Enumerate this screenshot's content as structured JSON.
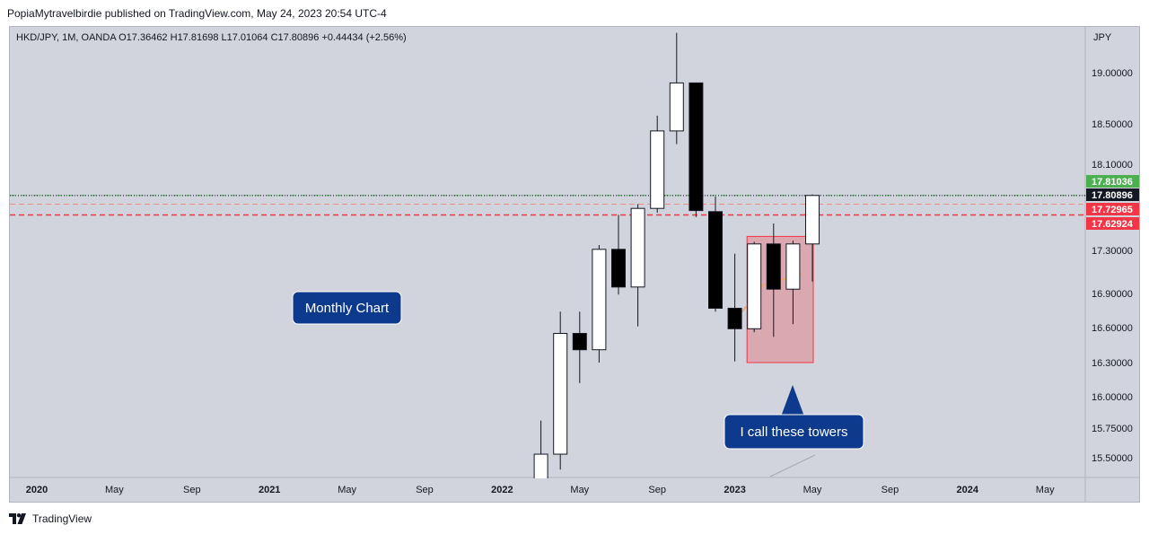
{
  "header": {
    "author": "PopiaMytravelbirdie",
    "published_text": "published on TradingView.com, May 24, 2023 20:54 UTC-4"
  },
  "chart_data": {
    "type": "candlestick",
    "symbol_line": {
      "symbol": "HKD/JPY, 1M, OANDA",
      "open": "O17.36462",
      "high": "H17.81698",
      "low": "L17.01064",
      "close": "C17.80896",
      "change": "+0.44434 (+2.56%)"
    },
    "currency_label": "JPY",
    "x_labels": [
      "2020",
      "May",
      "Sep",
      "2021",
      "May",
      "Sep",
      "2022",
      "May",
      "Sep",
      "2023",
      "May",
      "Sep",
      "2024",
      "May"
    ],
    "y_ticks": [
      15.5,
      15.75,
      16.0,
      16.3,
      16.6,
      16.9,
      17.3,
      18.1,
      18.5,
      19.0
    ],
    "y_tick_labels": [
      "15.50000",
      "15.75000",
      "16.00000",
      "16.30000",
      "16.60000",
      "16.90000",
      "17.30000",
      "18.10000",
      "18.50000",
      "19.00000"
    ],
    "candles": [
      {
        "date": "2022-03",
        "open": 15.3,
        "high": 15.81,
        "low": 15.2,
        "close": 15.53
      },
      {
        "date": "2022-04",
        "open": 15.53,
        "high": 16.74,
        "low": 15.4,
        "close": 16.55
      },
      {
        "date": "2022-05",
        "open": 16.55,
        "high": 16.74,
        "low": 16.12,
        "close": 16.41
      },
      {
        "date": "2022-06",
        "open": 16.41,
        "high": 17.35,
        "low": 16.3,
        "close": 17.31
      },
      {
        "date": "2022-07",
        "open": 17.31,
        "high": 17.63,
        "low": 16.89,
        "close": 16.96
      },
      {
        "date": "2022-08",
        "open": 16.96,
        "high": 17.73,
        "low": 16.61,
        "close": 17.69
      },
      {
        "date": "2022-09",
        "open": 17.69,
        "high": 18.58,
        "low": 17.65,
        "close": 18.43
      },
      {
        "date": "2022-10",
        "open": 18.43,
        "high": 19.39,
        "low": 18.3,
        "close": 18.9
      },
      {
        "date": "2022-11",
        "open": 18.9,
        "high": 18.9,
        "low": 17.61,
        "close": 17.67
      },
      {
        "date": "2022-12",
        "open": 17.66,
        "high": 17.8,
        "low": 16.74,
        "close": 16.77
      },
      {
        "date": "2023-01",
        "open": 16.77,
        "high": 17.27,
        "low": 16.31,
        "close": 16.59
      },
      {
        "date": "2023-02",
        "open": 16.59,
        "high": 17.38,
        "low": 16.56,
        "close": 17.36
      },
      {
        "date": "2023-03",
        "open": 17.36,
        "high": 17.55,
        "low": 16.52,
        "close": 16.94
      },
      {
        "date": "2023-04",
        "open": 16.94,
        "high": 17.39,
        "low": 16.63,
        "close": 17.36
      },
      {
        "date": "2023-05",
        "open": 17.36,
        "high": 17.82,
        "low": 17.01,
        "close": 17.81
      }
    ],
    "horizontal_lines": [
      {
        "label": "17.81036",
        "value": 17.81036,
        "color": "#4caf50",
        "style": "dash-dot"
      },
      {
        "label": "17.80896",
        "value": 17.80896,
        "color": "#131722",
        "style": "dotted"
      },
      {
        "label": "17.72965",
        "value": 17.72965,
        "color": "#f28b82",
        "style": "dashed"
      },
      {
        "label": "17.62924",
        "value": 17.62924,
        "color": "#f23645",
        "style": "dashed"
      }
    ],
    "annotations": [
      {
        "text": "Monthly Chart"
      },
      {
        "text": "I call these towers"
      }
    ],
    "highlight_box": {
      "from": "2023-02",
      "to": "2023-05",
      "top": 17.43,
      "bottom": 16.3,
      "color": "#f23645"
    }
  },
  "footer": {
    "brand": "TradingView"
  }
}
